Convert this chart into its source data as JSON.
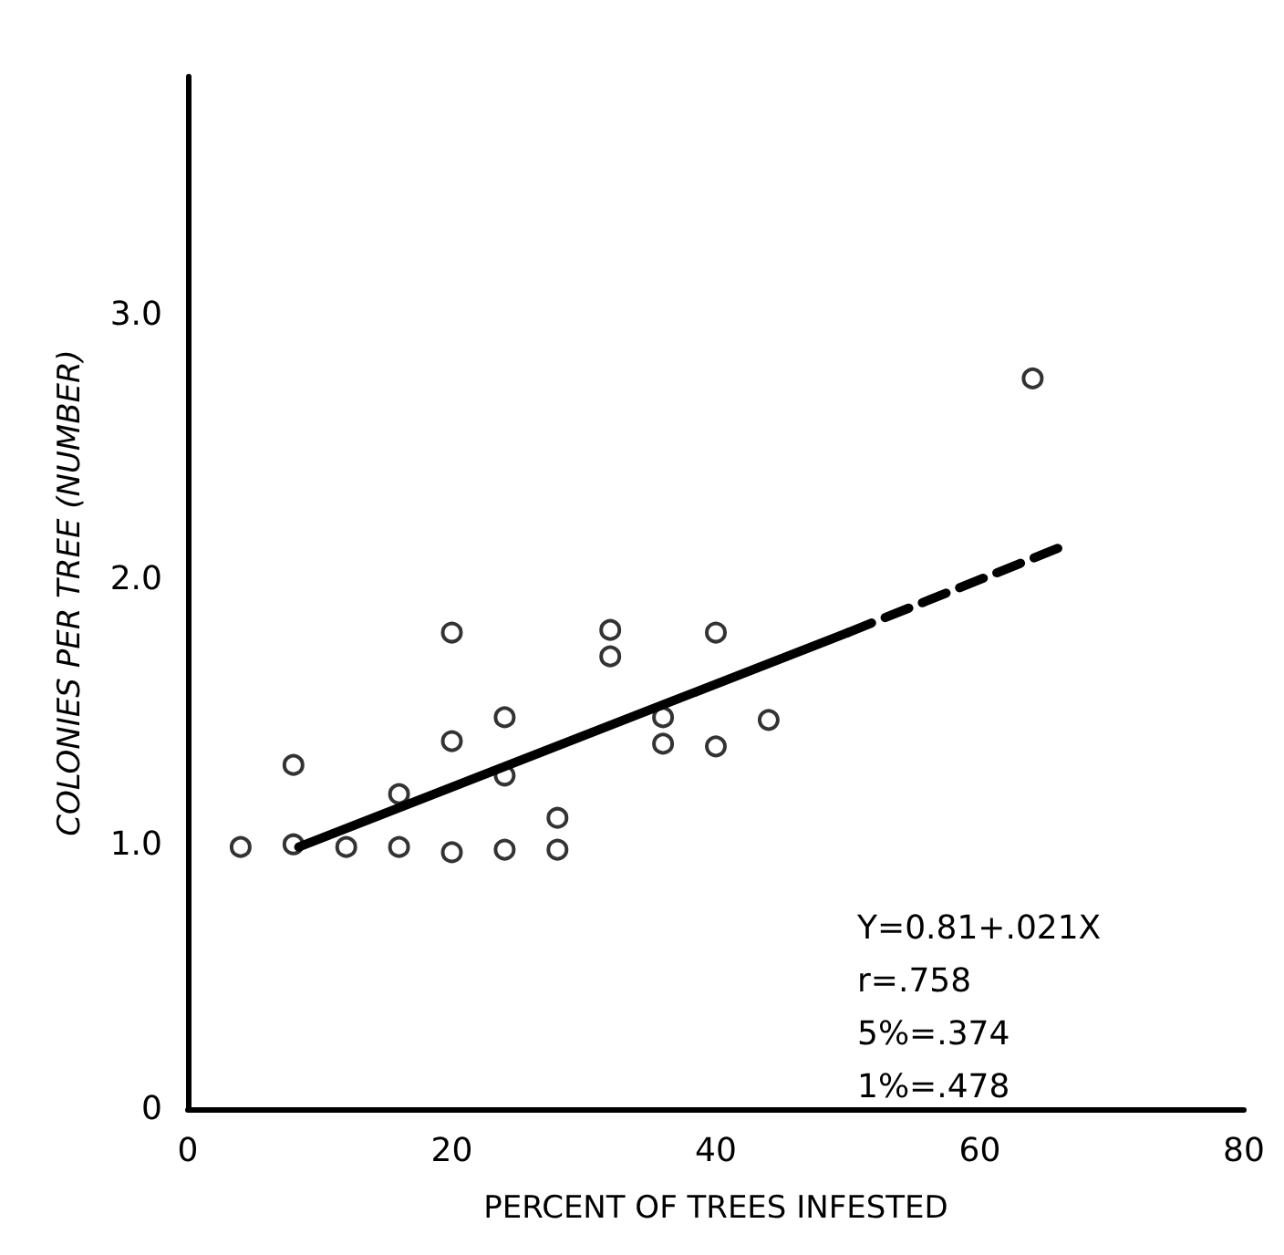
{
  "chart_data": {
    "type": "scatter",
    "xlabel": "PERCENT OF TREES INFESTED",
    "ylabel": "COLONIES PER TREE (NUMBER)",
    "xlim": [
      0,
      80
    ],
    "xticks": [
      0,
      20,
      40,
      60,
      80
    ],
    "ylim": [
      0,
      3.9
    ],
    "yticks": [
      0,
      {
        "value": 1,
        "label": "1.0"
      },
      {
        "value": 2,
        "label": "2.0"
      },
      {
        "value": 3,
        "label": "3.0"
      }
    ],
    "grid": false,
    "marker": "circle",
    "series": [
      {
        "color": "#000000",
        "x": [
          4,
          8,
          8,
          12,
          16,
          16,
          20,
          20,
          20,
          24,
          24,
          24,
          28,
          28,
          32,
          32,
          36,
          36,
          40,
          40,
          44,
          64
        ],
        "values": [
          0.99,
          1.0,
          1.3,
          0.99,
          1.19,
          0.99,
          1.8,
          1.39,
          0.97,
          1.48,
          1.26,
          0.98,
          1.1,
          0.98,
          1.81,
          1.71,
          1.48,
          1.38,
          1.8,
          1.37,
          1.47,
          2.76
        ]
      },
      {
        "type": "line",
        "color": "#000000",
        "marker": "none",
        "line_style": "solid",
        "x": [
          8.4,
          50
        ],
        "values": [
          0.99,
          1.8
        ]
      },
      {
        "type": "line",
        "color": "#000000",
        "marker": "none",
        "line_style": "dashed",
        "x": [
          50,
          66
        ],
        "values": [
          1.8,
          2.12
        ]
      }
    ],
    "annotations": [
      "Y=0.81+.021X",
      "r=.758",
      "5%=.374",
      "1%=.478"
    ]
  }
}
